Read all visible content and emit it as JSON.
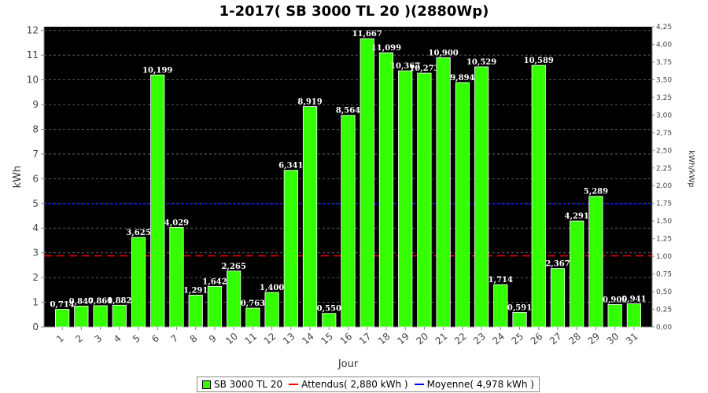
{
  "chart_data": {
    "type": "bar",
    "title": "1-2017( SB 3000 TL 20 )(2880Wp)",
    "xlabel": "Jour",
    "ylabel": "kWh",
    "ylabel_right": "kWh/kWp",
    "categories": [
      "1",
      "2",
      "3",
      "4",
      "5",
      "6",
      "7",
      "8",
      "9",
      "10",
      "11",
      "12",
      "13",
      "14",
      "15",
      "16",
      "17",
      "18",
      "19",
      "20",
      "21",
      "22",
      "23",
      "24",
      "25",
      "26",
      "27",
      "28",
      "29",
      "30",
      "31"
    ],
    "series": [
      {
        "name": "SB 3000 TL 20",
        "values": [
          0.714,
          0.847,
          0.861,
          0.882,
          3.625,
          10.199,
          4.029,
          1.291,
          1.642,
          2.265,
          0.763,
          1.4,
          6.341,
          8.919,
          0.55,
          8.564,
          11.667,
          11.099,
          10.367,
          10.273,
          10.9,
          9.894,
          10.529,
          1.714,
          0.591,
          10.589,
          2.367,
          4.291,
          5.289,
          0.909,
          0.941
        ],
        "labels": [
          "0,714",
          "0,847",
          "0,861",
          "0,882",
          "3,625",
          "10,199",
          "4,029",
          "1,291",
          "1,642",
          "2,265",
          "0,763",
          "1,400",
          "6,341",
          "8,919",
          "0,550",
          "8,564",
          "11,667",
          "11,099",
          "10,367",
          "10,273",
          "10,900",
          "9,894",
          "10,529",
          "1,714",
          "0,591",
          "10,589",
          "2,367",
          "4,291",
          "5,289",
          "0,909",
          "0,941"
        ],
        "color": "#33ff00"
      }
    ],
    "reference_lines": [
      {
        "name": "Attendus",
        "value": 2.88,
        "color": "#ff0000",
        "style": "dashed"
      },
      {
        "name": "Moyenne",
        "value": 4.978,
        "color": "#0000ff",
        "style": "dashed"
      }
    ],
    "ylim": [
      0,
      12.15
    ],
    "yticks": [
      "0",
      "1",
      "2",
      "3",
      "4",
      "5",
      "6",
      "7",
      "8",
      "9",
      "10",
      "11",
      "12"
    ],
    "ylim_right": [
      0,
      4.25
    ],
    "yticks_right": [
      "0,00",
      "0,25",
      "0,50",
      "0,75",
      "1,00",
      "1,25",
      "1,50",
      "1,75",
      "2,00",
      "2,25",
      "2,50",
      "2,75",
      "3,00",
      "3,25",
      "3,50",
      "3,75",
      "4,00",
      "4,25"
    ],
    "background": "#000000",
    "grid": true,
    "legend_position": "bottom"
  },
  "legend": {
    "bar": "SB 3000 TL 20",
    "expected": "Attendus( 2,880 kWh )",
    "average": "Moyenne( 4,978 kWh )"
  }
}
